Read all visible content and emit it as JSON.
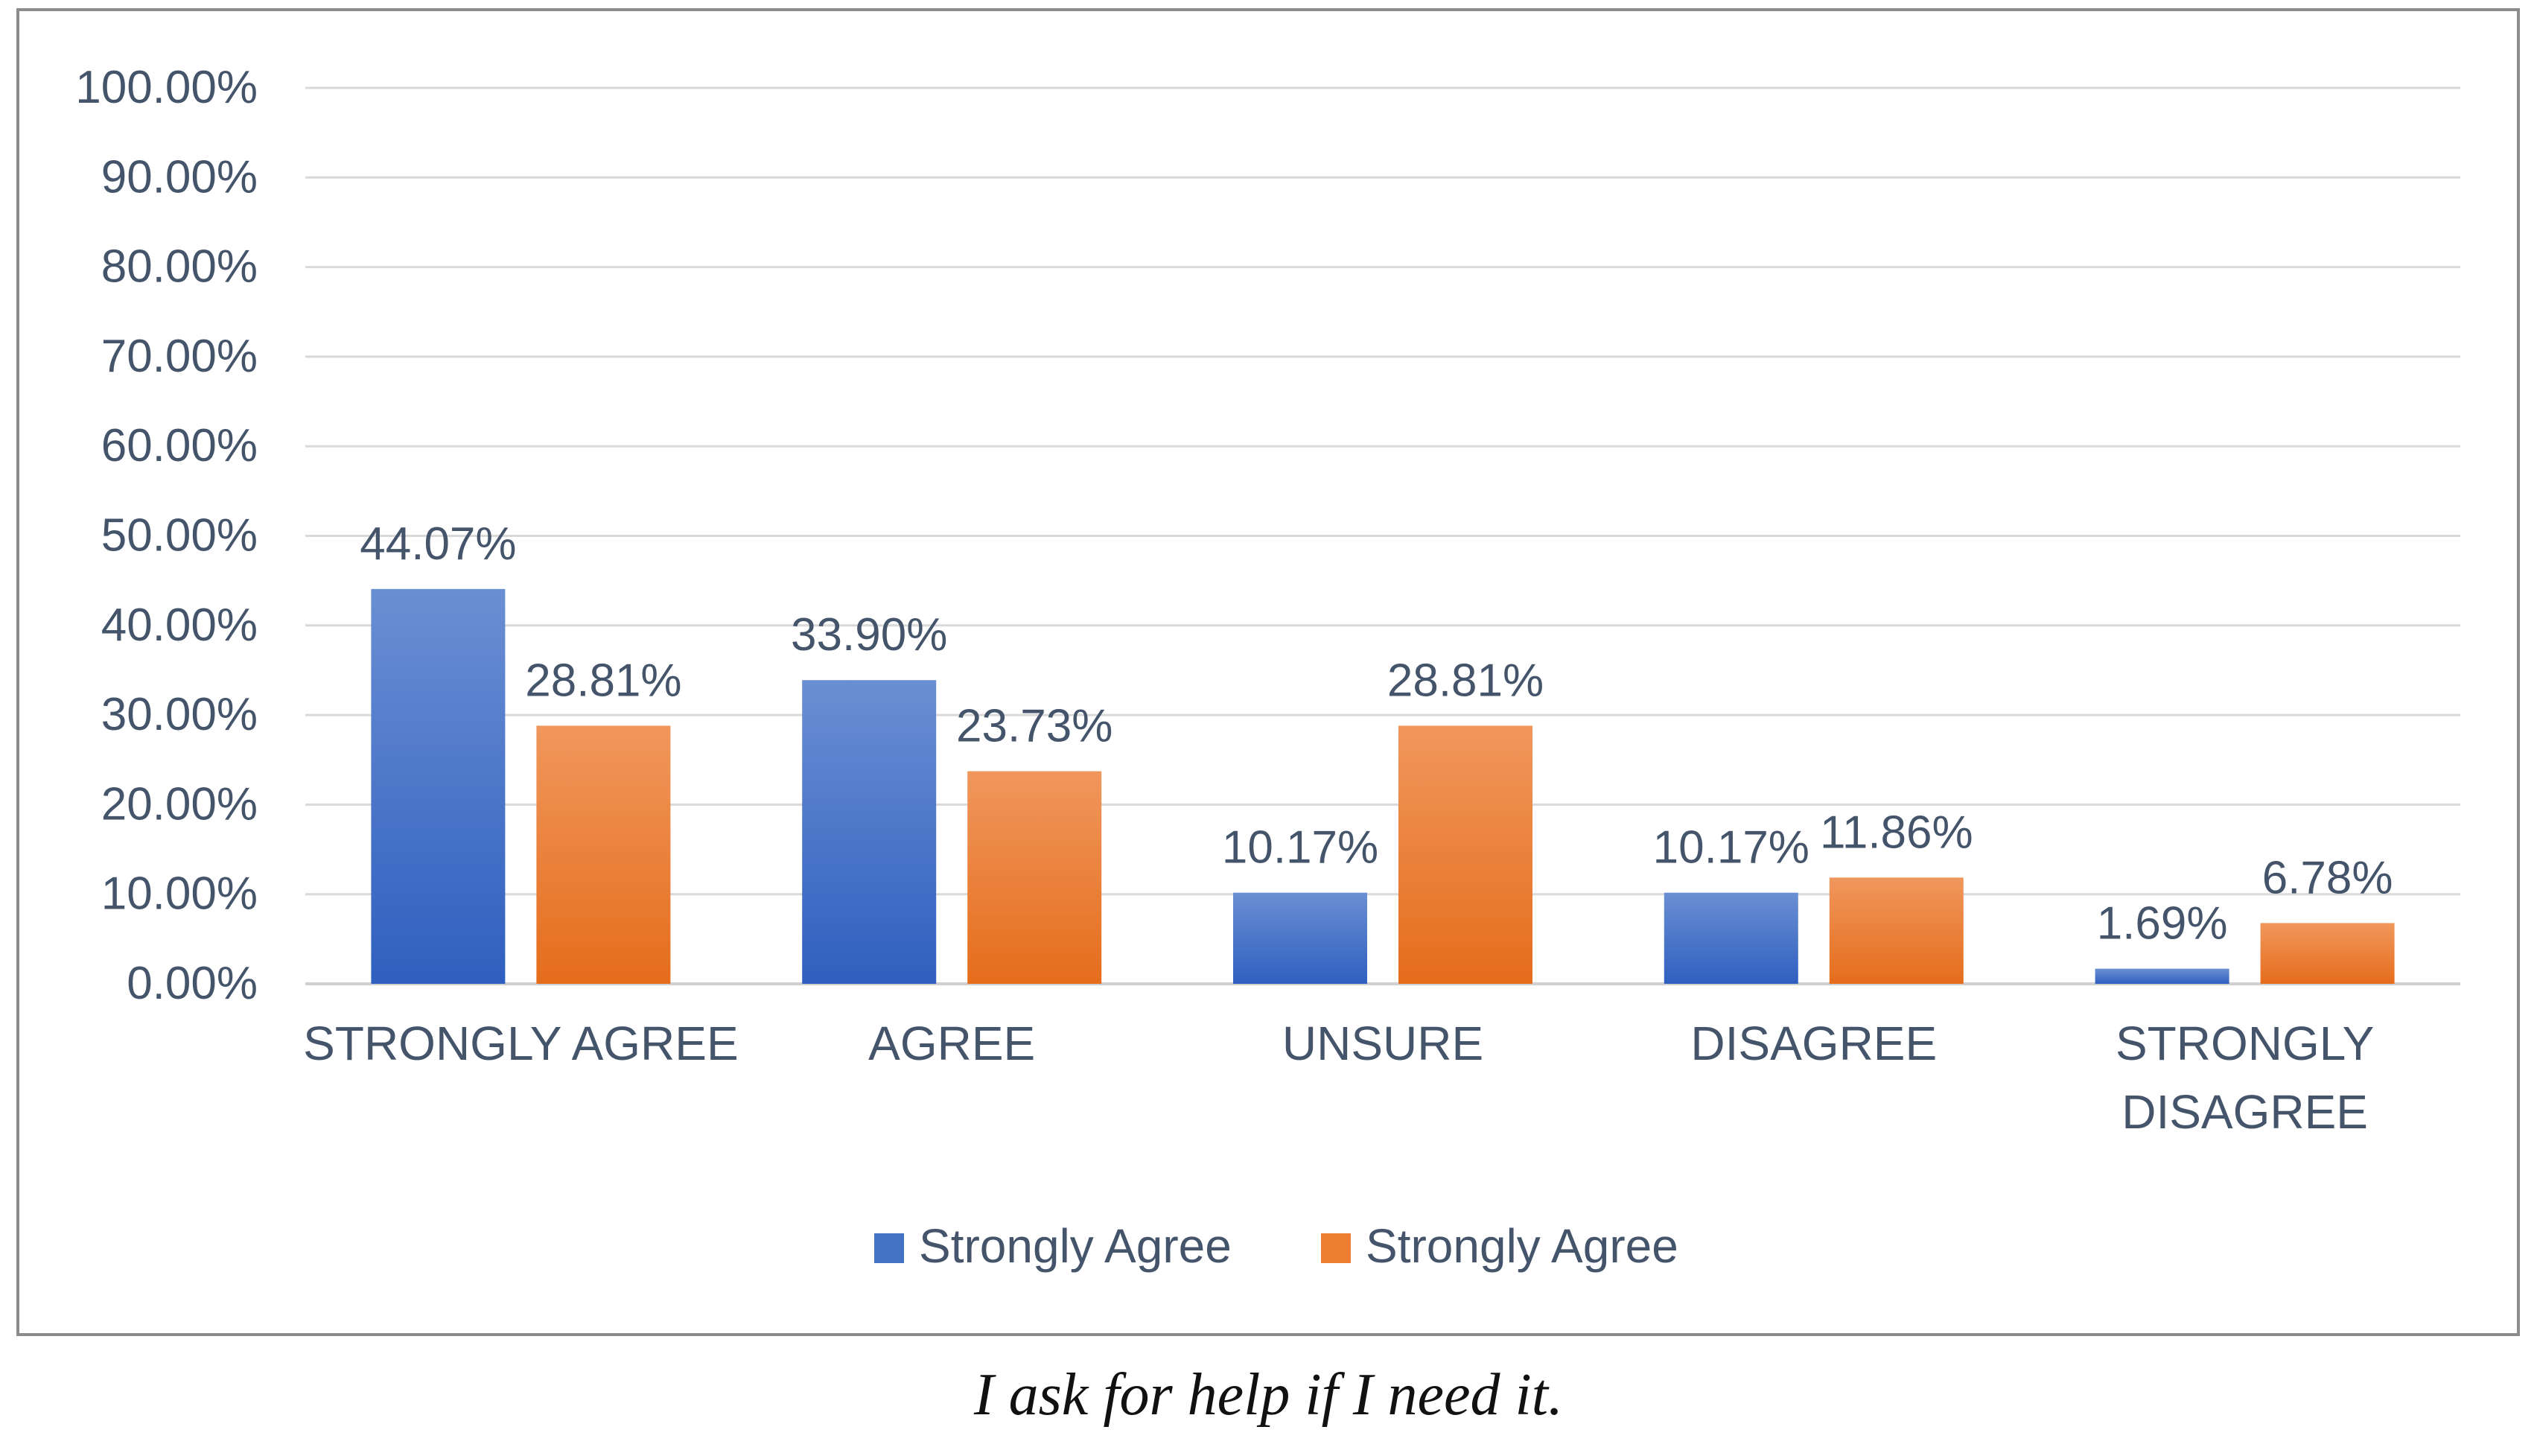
{
  "chart_data": {
    "type": "bar",
    "title": "",
    "xlabel": "",
    "ylabel": "",
    "ylim": [
      0,
      100
    ],
    "y_ticks": [
      "0.00%",
      "10.00%",
      "20.00%",
      "30.00%",
      "40.00%",
      "50.00%",
      "60.00%",
      "70.00%",
      "80.00%",
      "90.00%",
      "100.00%"
    ],
    "grid": true,
    "legend_position": "bottom",
    "categories": [
      [
        "STRONGLY AGREE"
      ],
      [
        "AGREE"
      ],
      [
        "UNSURE"
      ],
      [
        "DISAGREE"
      ],
      [
        "STRONGLY",
        "DISAGREE"
      ]
    ],
    "series": [
      {
        "name": "Strongly Agree",
        "color": "#4472c4",
        "values": [
          44.07,
          33.9,
          10.17,
          10.17,
          1.69
        ],
        "labels": [
          "44.07%",
          "33.90%",
          "10.17%",
          "10.17%",
          "1.69%"
        ]
      },
      {
        "name": "Strongly Agree",
        "color": "#ed7d31",
        "values": [
          28.81,
          23.73,
          28.81,
          11.86,
          6.78
        ],
        "labels": [
          "28.81%",
          "23.73%",
          "28.81%",
          "11.86%",
          "6.78%"
        ]
      }
    ]
  },
  "caption": "I ask for help if I need it."
}
